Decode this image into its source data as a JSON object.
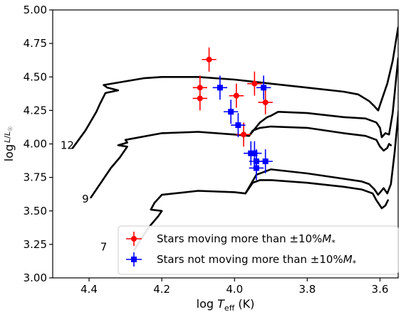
{
  "chart_data": {
    "type": "scatter",
    "title": "",
    "xlabel": "log T_eff (K)",
    "ylabel": "log L/L☉",
    "xlim": [
      4.5,
      3.55
    ],
    "ylim": [
      3.0,
      5.0
    ],
    "x_inverted": true,
    "x_ticks": [
      "4.4",
      "4.2",
      "4.0",
      "3.8",
      "3.6"
    ],
    "y_ticks": [
      "3.00",
      "3.25",
      "3.50",
      "3.75",
      "4.00",
      "4.25",
      "4.50",
      "4.75",
      "5.00"
    ],
    "grid": false,
    "legend_position": "bottom-right",
    "series": [
      {
        "name": "Stars moving more than ±10%M*",
        "marker": "circle",
        "color": "#ff0000",
        "points": [
          {
            "x": 4.07,
            "y": 4.63,
            "xerr": 0.02,
            "yerr": 0.09
          },
          {
            "x": 4.095,
            "y": 4.42,
            "xerr": 0.02,
            "yerr": 0.09
          },
          {
            "x": 4.095,
            "y": 4.34,
            "xerr": 0.02,
            "yerr": 0.09
          },
          {
            "x": 3.995,
            "y": 4.36,
            "xerr": 0.02,
            "yerr": 0.09
          },
          {
            "x": 3.945,
            "y": 4.45,
            "xerr": 0.02,
            "yerr": 0.09
          },
          {
            "x": 3.915,
            "y": 4.31,
            "xerr": 0.02,
            "yerr": 0.09
          },
          {
            "x": 3.975,
            "y": 4.07,
            "xerr": 0.02,
            "yerr": 0.09
          }
        ]
      },
      {
        "name": "Stars not moving more than ±10%M*",
        "marker": "square",
        "color": "#0000ff",
        "points": [
          {
            "x": 4.04,
            "y": 4.42,
            "xerr": 0.02,
            "yerr": 0.09
          },
          {
            "x": 4.01,
            "y": 4.24,
            "xerr": 0.02,
            "yerr": 0.09
          },
          {
            "x": 3.99,
            "y": 4.14,
            "xerr": 0.02,
            "yerr": 0.09
          },
          {
            "x": 3.92,
            "y": 4.42,
            "xerr": 0.02,
            "yerr": 0.09
          },
          {
            "x": 3.955,
            "y": 3.93,
            "xerr": 0.02,
            "yerr": 0.09
          },
          {
            "x": 3.945,
            "y": 3.93,
            "xerr": 0.02,
            "yerr": 0.09
          },
          {
            "x": 3.94,
            "y": 3.87,
            "xerr": 0.02,
            "yerr": 0.09
          },
          {
            "x": 3.915,
            "y": 3.87,
            "xerr": 0.02,
            "yerr": 0.09
          },
          {
            "x": 3.94,
            "y": 3.82,
            "xerr": 0.02,
            "yerr": 0.09
          }
        ]
      }
    ],
    "tracks": [
      {
        "label": "12",
        "points": [
          [
            4.445,
            3.97
          ],
          [
            4.41,
            4.1
          ],
          [
            4.38,
            4.24
          ],
          [
            4.37,
            4.3
          ],
          [
            4.355,
            4.38
          ],
          [
            4.32,
            4.4
          ],
          [
            4.35,
            4.42
          ],
          [
            4.36,
            4.44
          ],
          [
            4.25,
            4.49
          ],
          [
            4.2,
            4.5
          ],
          [
            4.1,
            4.5
          ],
          [
            4.0,
            4.48
          ],
          [
            3.9,
            4.45
          ],
          [
            3.8,
            4.42
          ],
          [
            3.7,
            4.39
          ],
          [
            3.66,
            4.37
          ],
          [
            3.63,
            4.32
          ],
          [
            3.615,
            4.28
          ],
          [
            3.605,
            4.25
          ],
          [
            3.595,
            4.33
          ],
          [
            3.58,
            4.45
          ],
          [
            3.565,
            4.62
          ],
          [
            3.55,
            4.87
          ]
        ]
      },
      {
        "label": "9",
        "points": [
          [
            4.395,
            3.6
          ],
          [
            4.37,
            3.7
          ],
          [
            4.34,
            3.82
          ],
          [
            4.315,
            3.9
          ],
          [
            4.295,
            3.98
          ],
          [
            4.32,
            3.99
          ],
          [
            4.295,
            4.01
          ],
          [
            4.3,
            4.03
          ],
          [
            4.2,
            4.08
          ],
          [
            4.1,
            4.09
          ],
          [
            4.0,
            4.07
          ],
          [
            3.96,
            4.06
          ],
          [
            3.93,
            4.16
          ],
          [
            3.91,
            4.2
          ],
          [
            3.9,
            4.21
          ],
          [
            3.88,
            4.24
          ],
          [
            3.8,
            4.23
          ],
          [
            3.7,
            4.2
          ],
          [
            3.64,
            4.19
          ],
          [
            3.61,
            4.16
          ],
          [
            3.6,
            4.12
          ],
          [
            3.595,
            4.05
          ],
          [
            3.585,
            4.08
          ],
          [
            3.575,
            4.07
          ],
          [
            3.565,
            4.23
          ],
          [
            3.55,
            4.64
          ]
        ]
      },
      {
        "label": "7",
        "points": [
          [
            4.275,
            3.21
          ],
          [
            4.255,
            3.3
          ],
          [
            4.235,
            3.38
          ],
          [
            4.21,
            3.46
          ],
          [
            4.2,
            3.5
          ],
          [
            4.23,
            3.51
          ],
          [
            4.22,
            3.56
          ],
          [
            4.2,
            3.62
          ],
          [
            4.1,
            3.65
          ],
          [
            4.0,
            3.64
          ],
          [
            3.97,
            3.63
          ],
          [
            3.94,
            3.77
          ],
          [
            3.9,
            3.81
          ],
          [
            3.8,
            3.78
          ],
          [
            3.7,
            3.74
          ],
          [
            3.65,
            3.72
          ],
          [
            3.63,
            3.7
          ],
          [
            3.615,
            3.66
          ],
          [
            3.605,
            3.62
          ],
          [
            3.59,
            3.67
          ],
          [
            3.58,
            3.63
          ],
          [
            3.57,
            3.7
          ],
          [
            3.56,
            3.93
          ],
          [
            3.548,
            4.27
          ]
        ]
      },
      {
        "label": "",
        "points": [
          [
            3.96,
            4.06
          ],
          [
            3.95,
            4.1
          ],
          [
            3.93,
            4.12
          ],
          [
            3.9,
            4.13
          ],
          [
            3.8,
            4.12
          ],
          [
            3.7,
            4.08
          ],
          [
            3.64,
            4.06
          ],
          [
            3.61,
            4.03
          ],
          [
            3.6,
            3.98
          ],
          [
            3.59,
            3.95
          ],
          [
            3.58,
            3.97
          ],
          [
            3.575,
            4.0
          ],
          [
            3.57,
            3.99
          ]
        ]
      },
      {
        "label": "",
        "points": [
          [
            3.97,
            3.63
          ],
          [
            3.95,
            3.71
          ],
          [
            3.93,
            3.73
          ],
          [
            3.9,
            3.73
          ],
          [
            3.8,
            3.71
          ],
          [
            3.7,
            3.68
          ],
          [
            3.65,
            3.66
          ],
          [
            3.62,
            3.63
          ],
          [
            3.61,
            3.58
          ],
          [
            3.595,
            3.52
          ],
          [
            3.585,
            3.54
          ],
          [
            3.578,
            3.58
          ]
        ]
      }
    ],
    "track_label_positions": [
      {
        "label": "12",
        "x": 4.46,
        "y": 3.99
      },
      {
        "label": "9",
        "x": 4.41,
        "y": 3.59
      },
      {
        "label": "7",
        "x": 4.36,
        "y": 3.23
      }
    ]
  }
}
